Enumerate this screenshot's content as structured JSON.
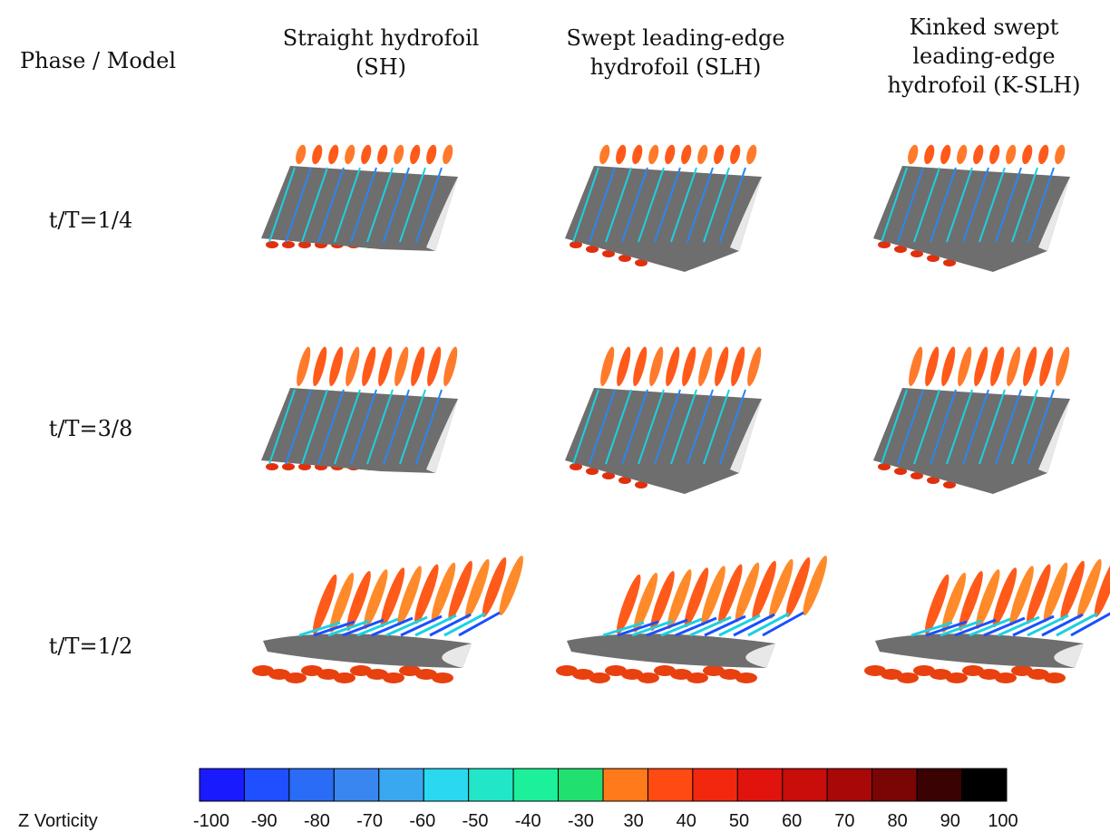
{
  "header": {
    "corner": "Phase / Model",
    "columns": [
      [
        "Straight hydrofoil",
        "(SH)"
      ],
      [
        "Swept leading-edge",
        "hydrofoil (SLH)"
      ],
      [
        "Kinked swept",
        "leading-edge",
        "hydrofoil (K-SLH)"
      ]
    ]
  },
  "rows": [
    "t/T=1/4",
    "t/T=3/8",
    "t/T=1/2"
  ],
  "colorbar": {
    "label": "Z Vorticity",
    "ticks": [
      -100,
      -90,
      -80,
      -70,
      -60,
      -50,
      -40,
      -30,
      30,
      40,
      50,
      60,
      70,
      80,
      90,
      100
    ],
    "colors": [
      "#1a1aff",
      "#1f4fff",
      "#2a6cf5",
      "#3a86f0",
      "#3aa8f0",
      "#2ad8f0",
      "#22e6c8",
      "#1cf09a",
      "#22e070",
      "#ff7a1a",
      "#ff4a12",
      "#f2280e",
      "#e0140c",
      "#c80d0a",
      "#a80808",
      "#7a0505",
      "#3a0202",
      "#000000"
    ]
  }
}
